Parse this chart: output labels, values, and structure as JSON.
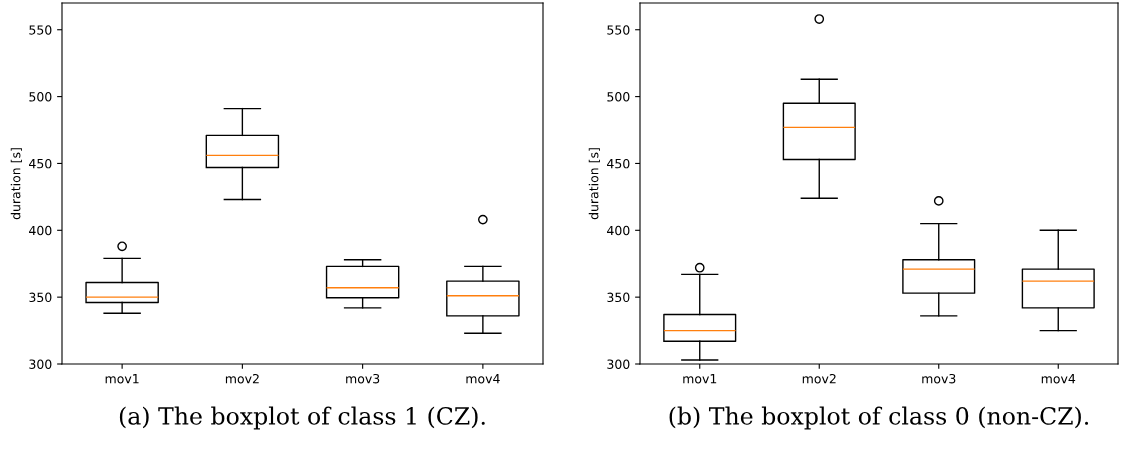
{
  "chart_data": [
    {
      "type": "box",
      "ylabel": "duration [s]",
      "categories": [
        "mov1",
        "mov2",
        "mov3",
        "mov4"
      ],
      "ylim": [
        300,
        570
      ],
      "yticks": [
        300,
        350,
        400,
        450,
        500,
        550
      ],
      "grid": false,
      "annotations": [
        "(a) The boxplot of class 1 (CZ)."
      ],
      "boxes": [
        {
          "low": 338,
          "q1": 346,
          "median": 350,
          "q3": 361,
          "high": 379,
          "outliers": [
            388
          ]
        },
        {
          "low": 423,
          "q1": 447,
          "median": 456,
          "q3": 471,
          "high": 491
        },
        {
          "low": 342,
          "q1": 349.5,
          "median": 357,
          "q3": 373,
          "high": 378
        },
        {
          "low": 323,
          "q1": 336,
          "median": 351,
          "q3": 362,
          "high": 373,
          "outliers": [
            408
          ]
        }
      ]
    },
    {
      "type": "box",
      "ylabel": "duration [s]",
      "categories": [
        "mov1",
        "mov2",
        "mov3",
        "mov4"
      ],
      "ylim": [
        300,
        570
      ],
      "yticks": [
        300,
        350,
        400,
        450,
        500,
        550
      ],
      "grid": false,
      "annotations": [
        "(b) The boxplot of class 0 (non-CZ)."
      ],
      "boxes": [
        {
          "low": 303,
          "q1": 317,
          "median": 325,
          "q3": 337,
          "high": 367,
          "outliers": [
            372
          ]
        },
        {
          "low": 424,
          "q1": 453,
          "median": 477,
          "q3": 495,
          "high": 513,
          "outliers": [
            558
          ]
        },
        {
          "low": 336,
          "q1": 353,
          "median": 371,
          "q3": 378,
          "high": 405,
          "outliers": [
            422
          ]
        },
        {
          "low": 325,
          "q1": 342,
          "median": 362,
          "q3": 371,
          "high": 400
        }
      ]
    }
  ]
}
